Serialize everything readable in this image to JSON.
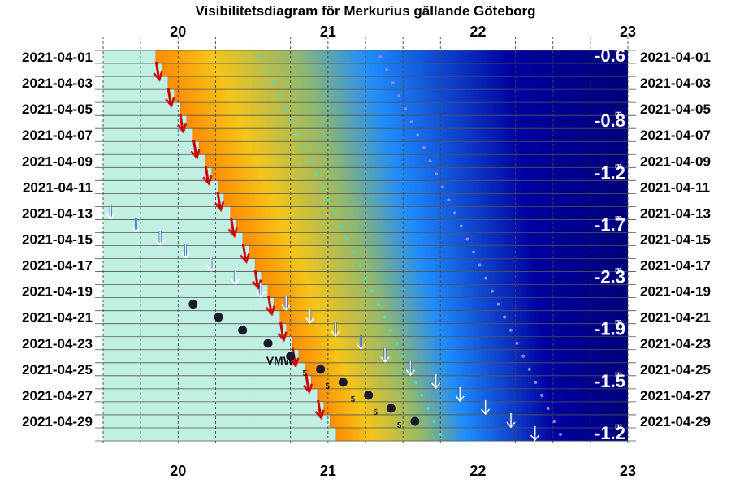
{
  "chart_data": {
    "type": "heatmap",
    "title": "Visibilitetsdiagram för Merkurius gällande Göteborg",
    "xlabel": "",
    "ylabel": "",
    "x_range": [
      19.5,
      23
    ],
    "x_ticks": [
      "20",
      "21",
      "22",
      "23"
    ],
    "dates": [
      "2021-04-01",
      "2021-04-03",
      "2021-04-05",
      "2021-04-07",
      "2021-04-09",
      "2021-04-11",
      "2021-04-13",
      "2021-04-15",
      "2021-04-17",
      "2021-04-19",
      "2021-04-21",
      "2021-04-23",
      "2021-04-25",
      "2021-04-27",
      "2021-04-29"
    ],
    "sunset_hours": [
      19.87,
      19.95,
      20.03,
      20.12,
      20.2,
      20.28,
      20.37,
      20.45,
      20.53,
      20.62,
      20.7,
      20.78,
      20.87,
      20.95
    ],
    "sunset_dates": [
      "2021-04-02",
      "2021-04-04",
      "2021-04-06",
      "2021-04-08",
      "2021-04-10",
      "2021-04-12",
      "2021-04-14",
      "2021-04-16",
      "2021-04-18",
      "2021-04-20",
      "2021-04-22",
      "2021-04-24",
      "2021-04-26",
      "2021-04-28"
    ],
    "mercury_set": {
      "dates": [
        "2021-04-13",
        "2021-04-14",
        "2021-04-15",
        "2021-04-16",
        "2021-04-17",
        "2021-04-18",
        "2021-04-19",
        "2021-04-20",
        "2021-04-21",
        "2021-04-22",
        "2021-04-23",
        "2021-04-24",
        "2021-04-25",
        "2021-04-26",
        "2021-04-27",
        "2021-04-28",
        "2021-04-29",
        "2021-04-30"
      ],
      "hours": [
        19.55,
        19.72,
        19.88,
        20.05,
        20.22,
        20.38,
        20.55,
        20.72,
        20.88,
        21.05,
        21.22,
        21.38,
        21.55,
        21.72,
        21.88,
        22.05,
        22.22,
        22.38
      ]
    },
    "mercury_altitude": {
      "dates": [
        "2021-04-20",
        "2021-04-21",
        "2021-04-22",
        "2021-04-23",
        "2021-04-24",
        "2021-04-25",
        "2021-04-26",
        "2021-04-27",
        "2021-04-28",
        "2021-04-29"
      ],
      "hours": [
        20.1,
        20.27,
        20.43,
        20.6,
        20.75,
        20.95,
        21.1,
        21.27,
        21.42,
        21.58
      ],
      "labels": [
        "",
        "",
        "",
        "",
        "VMW",
        "5",
        "5",
        "5",
        "5",
        "5"
      ]
    },
    "civil_twilight_dots": {
      "dates": [
        "2021-04-01",
        "2021-04-30"
      ],
      "hours": [
        20.55,
        21.75
      ]
    },
    "nautical_twilight_dots": {
      "dates": [
        "2021-04-01",
        "2021-04-30"
      ],
      "hours": [
        21.35,
        22.55
      ]
    },
    "magnitudes": [
      {
        "date": "2021-04-01",
        "value": "-0.6"
      },
      {
        "date": "2021-04-06",
        "value": "-0.8"
      },
      {
        "date": "2021-04-10",
        "value": "-1.2"
      },
      {
        "date": "2021-04-14",
        "value": "-1.7"
      },
      {
        "date": "2021-04-18",
        "value": "-2.3"
      },
      {
        "date": "2021-04-22",
        "value": "-1.9"
      },
      {
        "date": "2021-04-26",
        "value": "-1.5"
      },
      {
        "date": "2021-04-30",
        "value": "-1.2"
      }
    ],
    "magnitude_suffix": "m",
    "grid": true,
    "colors": {
      "day": "#c0f0e4",
      "sunset_orange": "#ff8c00",
      "twilight_yellow": "#f5c518",
      "twilight_green": "#8fb870",
      "evening_blue": "#1e8cff",
      "night_blue": "#0000a0",
      "deep_night": "#00007a",
      "set_arrow": "#cc0000",
      "mercury_arrow": "#ffffff",
      "mercury_dot": "#1a1a2e"
    }
  }
}
